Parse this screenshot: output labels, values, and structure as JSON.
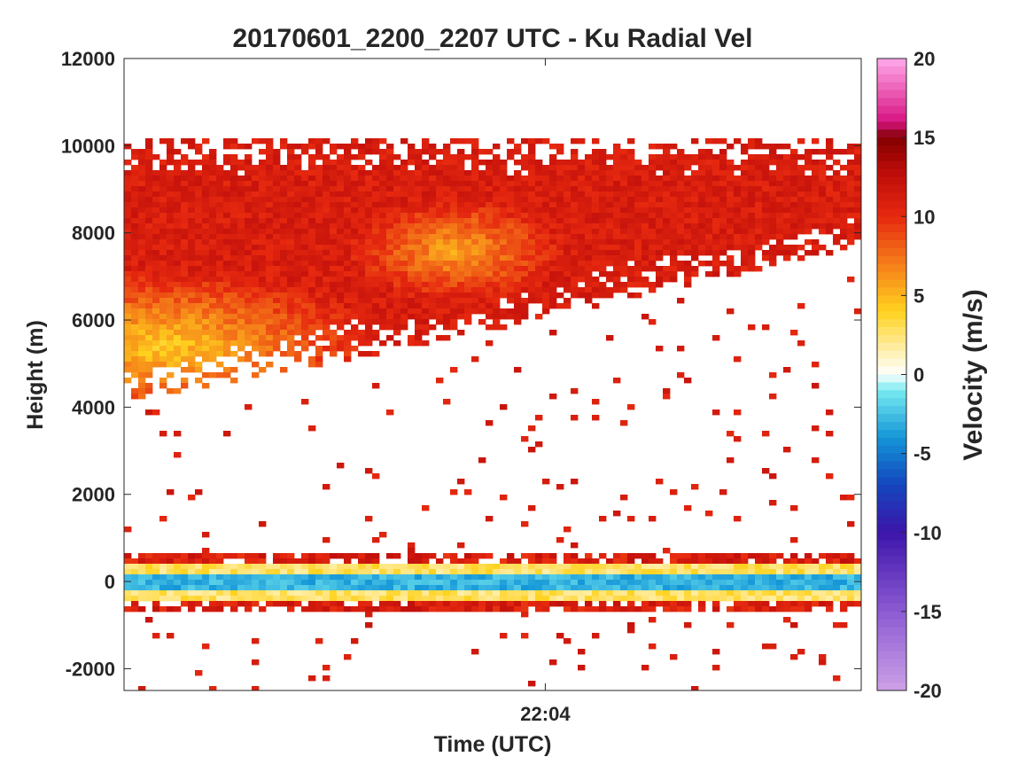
{
  "chart_data": {
    "type": "heatmap",
    "title": "20170601_2200_2207 UTC - Ku Radial Vel",
    "xlabel": "Time (UTC)",
    "ylabel": "Height (m)",
    "xlim": [
      "22:00",
      "22:07"
    ],
    "ylim": [
      -2500,
      12000
    ],
    "x_ticks": [
      "22:04"
    ],
    "y_ticks": [
      -2000,
      0,
      2000,
      4000,
      6000,
      8000,
      10000,
      12000
    ],
    "grid": false,
    "colorbar": {
      "label": "Velocity (m/s)",
      "range": [
        -20,
        20
      ],
      "ticks": [
        -20,
        -15,
        -10,
        -5,
        0,
        5,
        10,
        15,
        20
      ],
      "position": "right"
    },
    "features": {
      "upper_layer_top_m": 10200,
      "upper_layer_base_m_start": 4200,
      "upper_layer_base_m_end": 7700,
      "core_velocity_ms": 4,
      "surface_band_m": [
        -700,
        700
      ],
      "surface_velocity_ms": -3,
      "edge_velocity_ms": 11
    }
  },
  "colors": {
    "background": "#ffffff",
    "axis": "#262626",
    "red": "#e62a10",
    "orange": "#f07818",
    "yellow": "#ffd21a",
    "cyan": "#18b8e0",
    "blue": "#1070c8"
  }
}
